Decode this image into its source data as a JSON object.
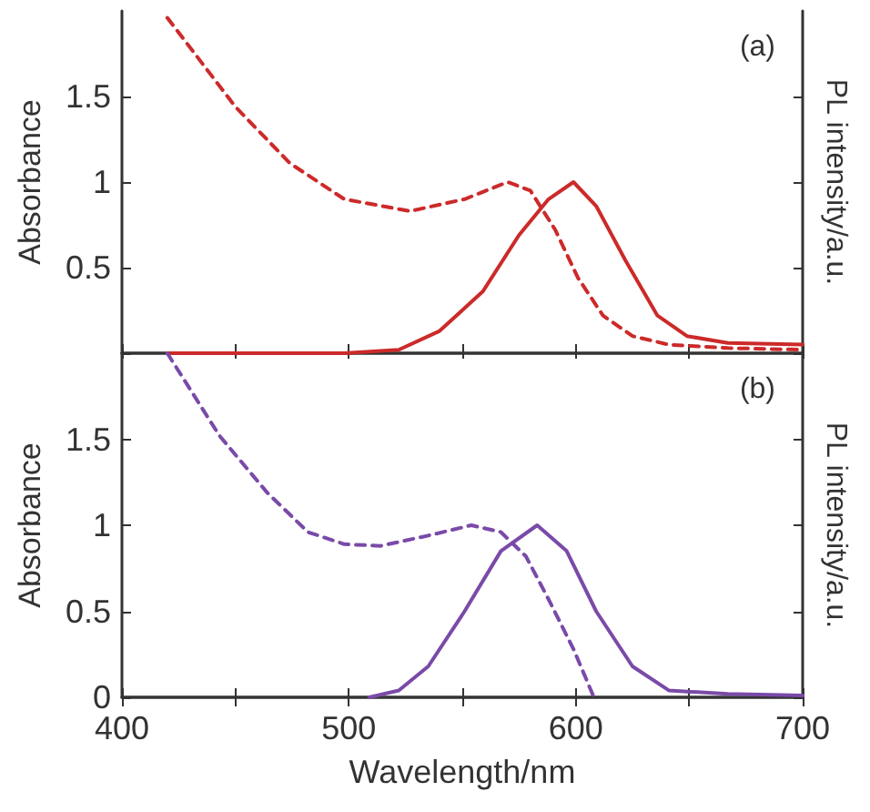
{
  "chart_data": [
    {
      "type": "line",
      "ylabel": "Absorbance",
      "y2label": "PL intensity/a.u.",
      "annotations": [
        "(a)"
      ],
      "xlim": [
        400,
        700
      ],
      "xticks": [
        400,
        {
          "value": 450,
          "label": null
        },
        500,
        {
          "value": 550,
          "label": null
        },
        600,
        {
          "value": 650,
          "label": null
        },
        700
      ],
      "ylim": [
        0,
        2
      ],
      "yticks": [
        {
          "value": 0,
          "label": null
        },
        0.5,
        1,
        1.5
      ],
      "tick_labels": "y",
      "marker": "none",
      "series": [
        {
          "color": "#cc2a2a",
          "line_style": "dashed",
          "x": [
            420,
            450,
            474,
            498,
            527,
            551,
            570,
            580,
            591,
            601,
            612,
            625,
            641,
            667,
            700
          ],
          "values": [
            1.96,
            1.44,
            1.11,
            0.9,
            0.83,
            0.9,
            1.0,
            0.95,
            0.72,
            0.44,
            0.22,
            0.1,
            0.05,
            0.03,
            0.02
          ]
        },
        {
          "color": "#cc2a2a",
          "line_style": "solid",
          "x": [
            420,
            498,
            522,
            540,
            559,
            575,
            588,
            599,
            609,
            622,
            636,
            649,
            667,
            700
          ],
          "values": [
            0,
            0,
            0.02,
            0.13,
            0.36,
            0.69,
            0.9,
            1.0,
            0.86,
            0.54,
            0.22,
            0.1,
            0.06,
            0.05
          ]
        }
      ]
    },
    {
      "type": "line",
      "xlabel": "Wavelength/nm",
      "ylabel": "Absorbance",
      "y2label": "PL intensity/a.u.",
      "annotations": [
        "(b)"
      ],
      "xlim": [
        400,
        700
      ],
      "xticks": [
        400,
        {
          "value": 450,
          "label": null
        },
        500,
        {
          "value": 550,
          "label": null
        },
        600,
        {
          "value": 650,
          "label": null
        },
        700
      ],
      "ylim": [
        0,
        2
      ],
      "yticks": [
        0,
        0.5,
        1,
        1.5
      ],
      "marker": "none",
      "series": [
        {
          "color": "#7a4aa8",
          "line_style": "dashed",
          "x": [
            420,
            443,
            464,
            482,
            498,
            514,
            535,
            554,
            567,
            578,
            588,
            599,
            608
          ],
          "values": [
            2.0,
            1.52,
            1.19,
            0.96,
            0.89,
            0.88,
            0.94,
            1.0,
            0.96,
            0.82,
            0.57,
            0.28,
            0
          ]
        },
        {
          "color": "#7a4aa8",
          "line_style": "solid",
          "x": [
            509,
            522,
            535,
            551,
            567,
            583,
            596,
            609,
            625,
            641,
            667,
            700
          ],
          "values": [
            0,
            0.04,
            0.18,
            0.5,
            0.85,
            1.0,
            0.85,
            0.5,
            0.18,
            0.04,
            0.02,
            0.01
          ]
        }
      ]
    }
  ]
}
